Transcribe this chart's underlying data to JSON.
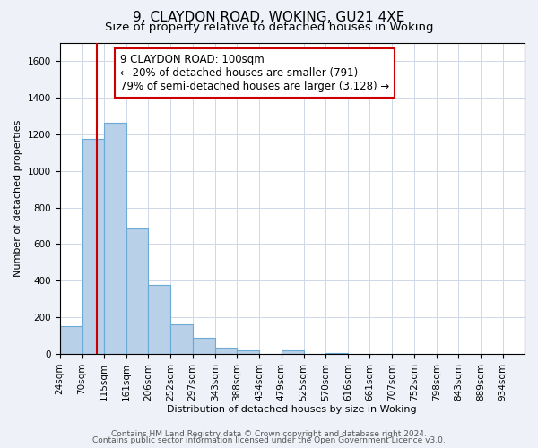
{
  "title": "9, CLAYDON ROAD, WOKING, GU21 4XE",
  "subtitle": "Size of property relative to detached houses in Woking",
  "xlabel": "Distribution of detached houses by size in Woking",
  "ylabel": "Number of detached properties",
  "bin_labels": [
    "24sqm",
    "70sqm",
    "115sqm",
    "161sqm",
    "206sqm",
    "252sqm",
    "297sqm",
    "343sqm",
    "388sqm",
    "434sqm",
    "479sqm",
    "525sqm",
    "570sqm",
    "616sqm",
    "661sqm",
    "707sqm",
    "752sqm",
    "798sqm",
    "843sqm",
    "889sqm",
    "934sqm"
  ],
  "bin_edges": [
    24,
    70,
    115,
    161,
    206,
    252,
    297,
    343,
    388,
    434,
    479,
    525,
    570,
    616,
    661,
    707,
    752,
    798,
    843,
    889,
    934,
    979
  ],
  "bar_heights": [
    150,
    1175,
    1260,
    685,
    375,
    160,
    90,
    35,
    20,
    0,
    20,
    0,
    5,
    0,
    0,
    0,
    0,
    0,
    0,
    0,
    0
  ],
  "bar_color": "#b8d0e8",
  "bar_edgecolor": "#6aaad4",
  "bar_linewidth": 0.8,
  "ylim": [
    0,
    1700
  ],
  "yticks": [
    0,
    200,
    400,
    600,
    800,
    1000,
    1200,
    1400,
    1600
  ],
  "red_line_x": 100,
  "red_line_color": "#cc0000",
  "annotation_line1": "9 CLAYDON ROAD: 100sqm",
  "annotation_line2": "← 20% of detached houses are smaller (791)",
  "annotation_line3": "79% of semi-detached houses are larger (3,128) →",
  "footer_line1": "Contains HM Land Registry data © Crown copyright and database right 2024.",
  "footer_line2": "Contains public sector information licensed under the Open Government Licence v3.0.",
  "background_color": "#eef2f8",
  "plot_background": "#ffffff",
  "grid_color": "#d0d8e8",
  "title_fontsize": 11,
  "subtitle_fontsize": 9.5,
  "axis_label_fontsize": 8,
  "tick_fontsize": 7.5,
  "footer_fontsize": 6.5,
  "annotation_fontsize": 8.5
}
